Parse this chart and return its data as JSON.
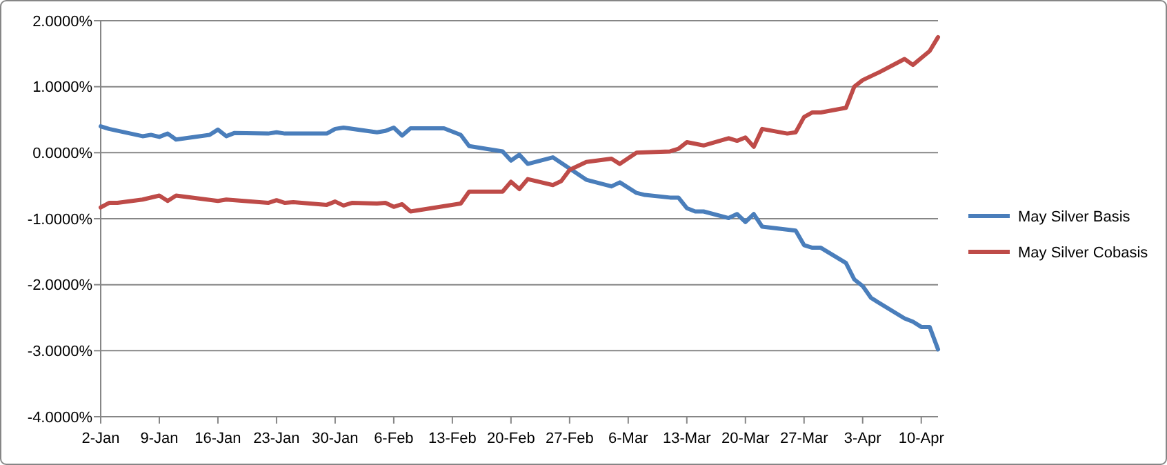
{
  "chart_data": {
    "type": "line",
    "xlim": [
      "--01-02",
      "--04-12"
    ],
    "xticks": [
      {
        "value": "--01-02",
        "label": "2-Jan"
      },
      {
        "value": "--01-09",
        "label": "9-Jan"
      },
      {
        "value": "--01-16",
        "label": "16-Jan"
      },
      {
        "value": "--01-23",
        "label": "23-Jan"
      },
      {
        "value": "--01-30",
        "label": "30-Jan"
      },
      {
        "value": "--02-06",
        "label": "6-Feb"
      },
      {
        "value": "--02-13",
        "label": "13-Feb"
      },
      {
        "value": "--02-20",
        "label": "20-Feb"
      },
      {
        "value": "--02-27",
        "label": "27-Feb"
      },
      {
        "value": "--03-06",
        "label": "6-Mar"
      },
      {
        "value": "--03-13",
        "label": "13-Mar"
      },
      {
        "value": "--03-20",
        "label": "20-Mar"
      },
      {
        "value": "--03-27",
        "label": "27-Mar"
      },
      {
        "value": "--04-03",
        "label": "3-Apr"
      },
      {
        "value": "--04-10",
        "label": "10-Apr"
      }
    ],
    "ylim": [
      -4,
      2
    ],
    "yticks": [
      {
        "value": -4,
        "label": "-4.0000%"
      },
      {
        "value": -3,
        "label": "-3.0000%"
      },
      {
        "value": -2,
        "label": "-2.0000%"
      },
      {
        "value": -1,
        "label": "-1.0000%"
      },
      {
        "value": 0,
        "label": "0.0000%"
      },
      {
        "value": 1,
        "label": "1.0000%"
      },
      {
        "value": 2,
        "label": "2.0000%"
      }
    ],
    "grid": "y",
    "legend": "right",
    "marker": "none",
    "line_style": "solid",
    "series": [
      {
        "name": "May Silver Basis",
        "color": "#4a7ebb",
        "x": [
          "--01-02",
          "--01-03",
          "--01-07",
          "--01-08",
          "--01-09",
          "--01-10",
          "--01-11",
          "--01-15",
          "--01-16",
          "--01-17",
          "--01-18",
          "--01-22",
          "--01-23",
          "--01-24",
          "--01-29",
          "--01-30",
          "--01-31",
          "--02-04",
          "--02-05",
          "--02-06",
          "--02-07",
          "--02-08",
          "--02-12",
          "--02-14",
          "--02-15",
          "--02-19",
          "--02-20",
          "--02-21",
          "--02-22",
          "--02-25",
          "--02-27",
          "--03-01",
          "--03-04",
          "--03-05",
          "--03-07",
          "--03-08",
          "--03-11",
          "--03-12",
          "--03-13",
          "--03-14",
          "--03-15",
          "--03-18",
          "--03-19",
          "--03-20",
          "--03-21",
          "--03-22",
          "--03-26",
          "--03-27",
          "--03-28",
          "--03-29",
          "--04-01",
          "--04-02",
          "--04-03",
          "--04-04",
          "--04-08",
          "--04-09",
          "--04-10",
          "--04-11",
          "--04-12"
        ],
        "values": [
          0.4,
          0.36,
          0.25,
          0.27,
          0.24,
          0.29,
          0.2,
          0.27,
          0.35,
          0.25,
          0.3,
          0.29,
          0.31,
          0.29,
          0.29,
          0.36,
          0.38,
          0.31,
          0.33,
          0.38,
          0.26,
          0.37,
          0.37,
          0.27,
          0.1,
          0.02,
          -0.12,
          -0.03,
          -0.17,
          -0.07,
          -0.24,
          -0.41,
          -0.51,
          -0.45,
          -0.61,
          -0.64,
          -0.68,
          -0.68,
          -0.84,
          -0.89,
          -0.89,
          -0.99,
          -0.93,
          -1.05,
          -0.93,
          -1.12,
          -1.18,
          -1.4,
          -1.44,
          -1.44,
          -1.67,
          -1.92,
          -2.02,
          -2.2,
          -2.51,
          -2.56,
          -2.64,
          -2.64,
          -2.98
        ]
      },
      {
        "name": "May Silver Cobasis",
        "color": "#be4b48",
        "x": [
          "--01-02",
          "--01-03",
          "--01-04",
          "--01-07",
          "--01-09",
          "--01-10",
          "--01-11",
          "--01-16",
          "--01-17",
          "--01-22",
          "--01-23",
          "--01-24",
          "--01-25",
          "--01-29",
          "--01-30",
          "--01-31",
          "--02-01",
          "--02-04",
          "--02-05",
          "--02-06",
          "--02-07",
          "--02-08",
          "--02-14",
          "--02-15",
          "--02-19",
          "--02-20",
          "--02-21",
          "--02-22",
          "--02-25",
          "--02-26",
          "--02-27",
          "--03-01",
          "--03-04",
          "--03-05",
          "--03-07",
          "--03-11",
          "--03-12",
          "--03-13",
          "--03-15",
          "--03-18",
          "--03-19",
          "--03-20",
          "--03-21",
          "--03-22",
          "--03-25",
          "--03-26",
          "--03-27",
          "--03-28",
          "--03-29",
          "--04-01",
          "--04-02",
          "--04-03",
          "--04-05",
          "--04-08",
          "--04-09",
          "--04-11",
          "--04-12"
        ],
        "values": [
          -0.83,
          -0.76,
          -0.76,
          -0.71,
          -0.65,
          -0.73,
          -0.65,
          -0.73,
          -0.71,
          -0.76,
          -0.72,
          -0.76,
          -0.75,
          -0.79,
          -0.74,
          -0.8,
          -0.76,
          -0.77,
          -0.76,
          -0.82,
          -0.78,
          -0.89,
          -0.77,
          -0.59,
          -0.59,
          -0.44,
          -0.55,
          -0.4,
          -0.49,
          -0.43,
          -0.26,
          -0.14,
          -0.09,
          -0.17,
          0.0,
          0.02,
          0.06,
          0.16,
          0.11,
          0.22,
          0.18,
          0.23,
          0.09,
          0.36,
          0.29,
          0.31,
          0.54,
          0.61,
          0.61,
          0.68,
          1.0,
          1.1,
          1.22,
          1.42,
          1.33,
          1.54,
          1.75
        ]
      }
    ]
  }
}
